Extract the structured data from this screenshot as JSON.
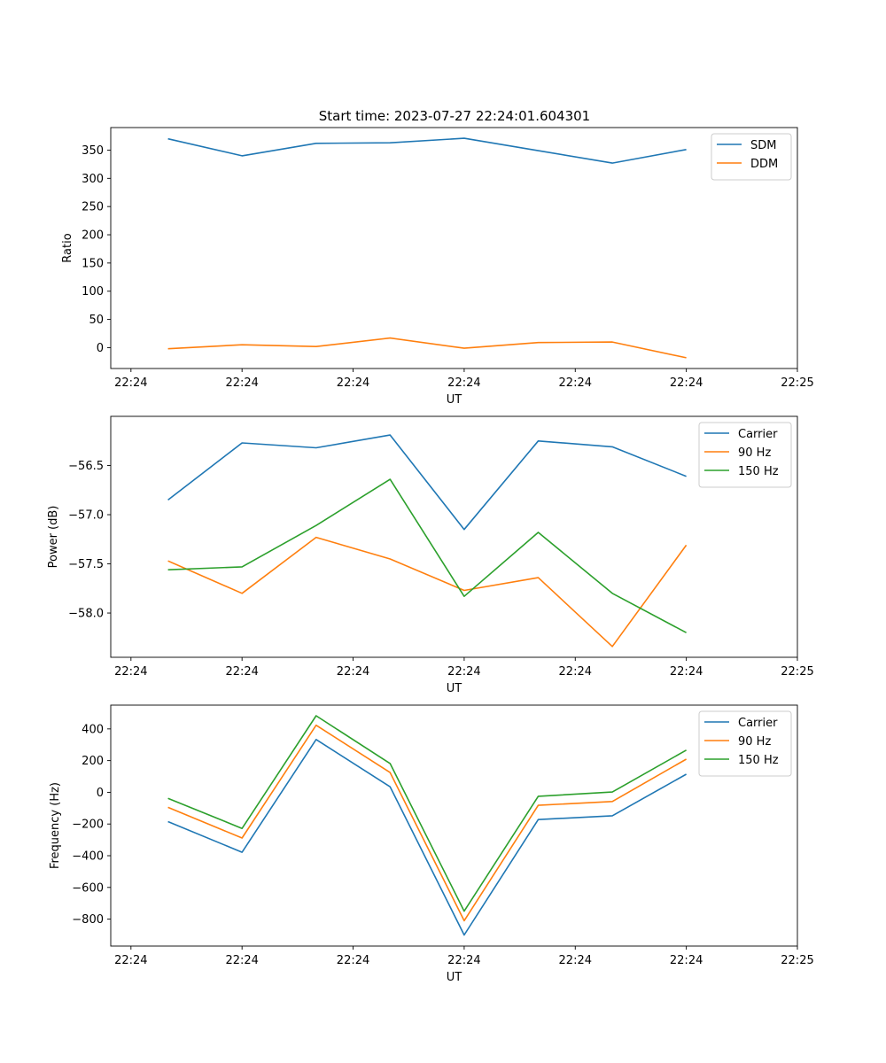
{
  "figure_title": "Start time: 2023-07-27 22:24:01.604301",
  "colors": {
    "blue": "#1f77b4",
    "orange": "#ff7f0e",
    "green": "#2ca02c"
  },
  "chart_data": [
    {
      "type": "line",
      "title": "Start time: 2023-07-27 22:24:01.604301",
      "xlabel": "UT",
      "ylabel": "Ratio",
      "x": [
        1,
        2,
        3,
        4,
        5,
        6,
        7,
        8
      ],
      "xlim": [
        0.227,
        9.5
      ],
      "x_ticks": [
        0.5,
        2.0,
        3.5,
        5.0,
        6.5,
        8.0,
        9.5
      ],
      "x_tick_labels": [
        "22:24",
        "22:24",
        "22:24",
        "22:24",
        "22:24",
        "22:24",
        "22:25"
      ],
      "ylim": [
        -37,
        390
      ],
      "y_ticks": [
        0,
        50,
        100,
        150,
        200,
        250,
        300,
        350
      ],
      "y_tick_labels": [
        "0",
        "50",
        "100",
        "150",
        "200",
        "250",
        "300",
        "350"
      ],
      "legend": "top-right",
      "series": [
        {
          "name": "SDM",
          "color": "#1f77b4",
          "values": [
            370,
            340,
            362,
            363,
            371,
            349,
            327,
            351
          ]
        },
        {
          "name": "DDM",
          "color": "#ff7f0e",
          "values": [
            -2,
            5,
            2,
            17,
            -1,
            9,
            10,
            -18
          ]
        }
      ]
    },
    {
      "type": "line",
      "title": "",
      "xlabel": "UT",
      "ylabel": "Power (dB)",
      "x": [
        1,
        2,
        3,
        4,
        5,
        6,
        7,
        8
      ],
      "xlim": [
        0.227,
        9.5
      ],
      "x_ticks": [
        0.5,
        2.0,
        3.5,
        5.0,
        6.5,
        8.0,
        9.5
      ],
      "x_tick_labels": [
        "22:24",
        "22:24",
        "22:24",
        "22:24",
        "22:24",
        "22:24",
        "22:25"
      ],
      "ylim": [
        -58.45,
        -56.0
      ],
      "y_ticks": [
        -58.0,
        -57.5,
        -57.0,
        -56.5
      ],
      "y_tick_labels": [
        "−58.0",
        "−57.5",
        "−57.0",
        "−56.5"
      ],
      "legend": "top-right",
      "series": [
        {
          "name": "Carrier",
          "color": "#1f77b4",
          "values": [
            -56.85,
            -56.27,
            -56.32,
            -56.19,
            -57.15,
            -56.25,
            -56.31,
            -56.61
          ]
        },
        {
          "name": "90 Hz",
          "color": "#ff7f0e",
          "values": [
            -57.47,
            -57.8,
            -57.23,
            -57.45,
            -57.77,
            -57.64,
            -58.34,
            -57.31
          ]
        },
        {
          "name": "150 Hz",
          "color": "#2ca02c",
          "values": [
            -57.56,
            -57.53,
            -57.11,
            -56.64,
            -57.83,
            -57.18,
            -57.8,
            -58.2
          ]
        }
      ]
    },
    {
      "type": "line",
      "title": "",
      "xlabel": "UT",
      "ylabel": "Frequency (Hz)",
      "x": [
        1,
        2,
        3,
        4,
        5,
        6,
        7,
        8
      ],
      "xlim": [
        0.227,
        9.5
      ],
      "x_ticks": [
        0.5,
        2.0,
        3.5,
        5.0,
        6.5,
        8.0,
        9.5
      ],
      "x_tick_labels": [
        "22:24",
        "22:24",
        "22:24",
        "22:24",
        "22:24",
        "22:24",
        "22:25"
      ],
      "ylim": [
        -970,
        550
      ],
      "y_ticks": [
        -800,
        -600,
        -400,
        -200,
        0,
        200,
        400
      ],
      "y_tick_labels": [
        "−800",
        "−600",
        "−400",
        "−200",
        "0",
        "200",
        "400"
      ],
      "legend": "top-right",
      "series": [
        {
          "name": "Carrier",
          "color": "#1f77b4",
          "values": [
            -185,
            -378,
            333,
            35,
            -900,
            -172,
            -148,
            114
          ]
        },
        {
          "name": "90 Hz",
          "color": "#ff7f0e",
          "values": [
            -95,
            -288,
            423,
            125,
            -810,
            -82,
            -58,
            209
          ]
        },
        {
          "name": "150 Hz",
          "color": "#2ca02c",
          "values": [
            -38,
            -228,
            483,
            182,
            -750,
            -25,
            2,
            266
          ]
        }
      ]
    }
  ]
}
